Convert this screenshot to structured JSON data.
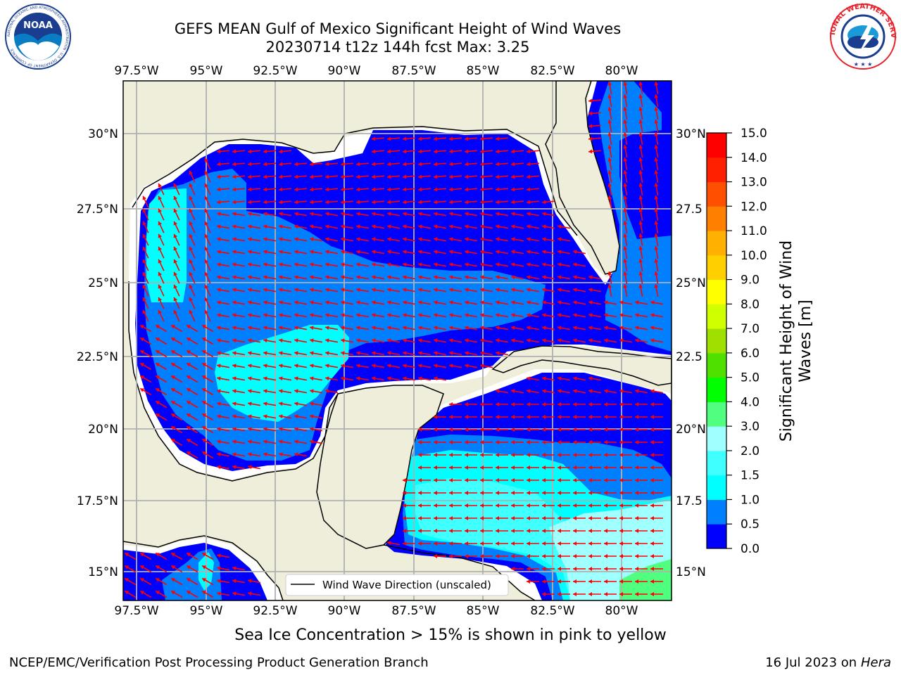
{
  "header": {
    "title_line1": "GEFS MEAN Gulf of Mexico Significant Height of Wind Waves",
    "title_line2": "20230714 t12z 144h fcst   Max: 3.25"
  },
  "logos": {
    "noaa": "NOAA",
    "noaa_ring": "NATIONAL OCEANIC AND ATMOSPHERIC ADMINISTRATION · U.S. DEPARTMENT OF COMMERCE",
    "nws_ring": "NATIONAL WEATHER SERVICE"
  },
  "map": {
    "lon_labels": [
      "97.5°W",
      "95°W",
      "92.5°W",
      "90°W",
      "87.5°W",
      "85°W",
      "82.5°W",
      "80°W"
    ],
    "lat_labels_left": [
      "30°N",
      "27.5°N",
      "25°N",
      "22.5°N",
      "20°N",
      "17.5°N",
      "15°N"
    ],
    "lat_labels_right": [
      "30°N",
      "27.5",
      "25°N",
      "22.5",
      "20°N",
      "17.5",
      "15°N"
    ],
    "legend_label": "Wind Wave Direction (unscaled)",
    "colors": {
      "land": "#efeedb",
      "white_sea": "#ffffff",
      "arrow": "#ff0000",
      "grid": "#b0b0b0"
    }
  },
  "colorbar": {
    "label_line1": "Significant Height of Wind",
    "label_line2": "Waves [m]",
    "ticks": [
      "15.0",
      "14.0",
      "13.0",
      "12.0",
      "11.0",
      "10.0",
      "9.0",
      "8.0",
      "7.0",
      "6.0",
      "5.0",
      "4.0",
      "3.0",
      "2.0",
      "1.5",
      "1.0",
      "0.5",
      "0.0"
    ],
    "colors_bottom_to_top": [
      "#0000ff",
      "#0080ff",
      "#00ffff",
      "#40ffff",
      "#a0ffff",
      "#50ff80",
      "#00ff00",
      "#50e000",
      "#a0e000",
      "#d0ff00",
      "#ffff00",
      "#ffd000",
      "#ffb000",
      "#ff8000",
      "#ff5000",
      "#ff2000",
      "#ff0000"
    ]
  },
  "footer": {
    "ice_note": "Sea Ice Concentration > 15% is shown in pink to yellow",
    "credit": "NCEP/EMC/Verification Post Processing Product Generation Branch",
    "date_prefix": "16 Jul 2023 on ",
    "machine": "Hera"
  }
}
